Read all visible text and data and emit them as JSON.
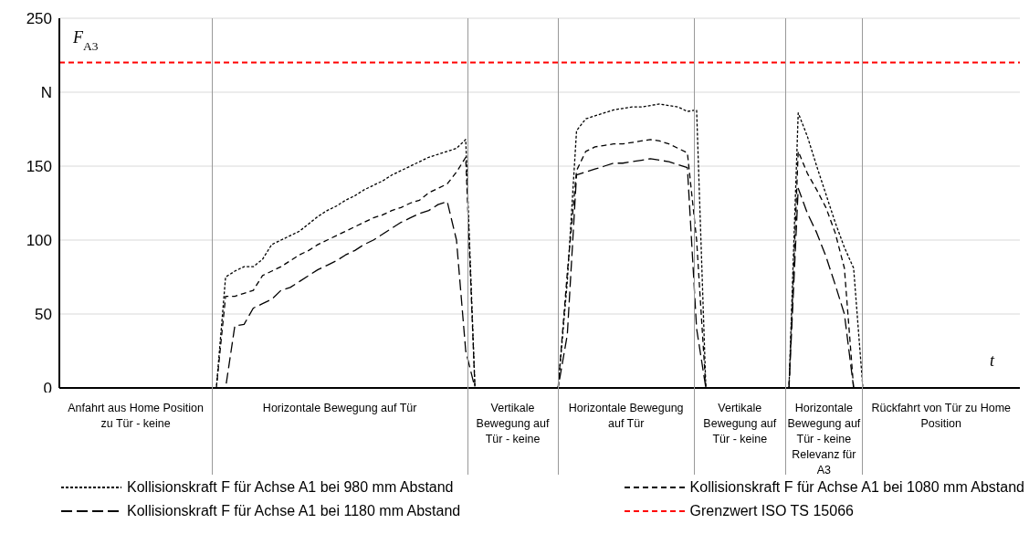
{
  "chart_data": {
    "type": "line",
    "ylabel": "F$_{A3}$",
    "xlabel": "t",
    "categories": [
      null,
      null,
      null,
      null,
      null,
      null,
      null,
      null,
      null,
      null,
      null,
      null,
      null,
      null,
      null,
      null,
      null,
      null,
      null,
      null,
      null,
      null,
      null,
      null,
      null,
      null,
      null,
      null,
      null,
      null,
      null,
      null,
      null,
      null,
      null,
      null,
      null,
      null,
      null,
      null,
      null,
      null,
      null,
      null,
      null,
      null,
      null,
      null,
      null,
      null,
      null,
      null,
      null,
      null,
      null,
      null,
      null,
      null,
      null,
      null,
      null,
      null,
      null,
      null,
      null,
      null,
      null,
      null,
      null,
      null,
      null,
      null,
      null,
      null,
      null,
      null,
      null,
      null,
      null,
      null,
      null,
      null,
      null,
      null,
      null,
      null,
      null,
      null,
      null,
      null,
      null,
      null,
      null,
      null,
      null,
      null,
      null,
      null,
      null,
      null,
      null,
      null,
      null,
      null,
      null
    ],
    "ylim": [
      0,
      250
    ],
    "yticks": [
      0,
      50,
      100,
      150,
      {
        "value": 200,
        "label": "N"
      },
      250
    ],
    "grid": "y",
    "legend": "bottom",
    "marker": "none",
    "series": [
      {
        "name": "Kollisionskraft F für Achse A1 bei 980 mm Abstand",
        "color": "#000000",
        "line_style": "dotted",
        "values": [
          0,
          0,
          0,
          0,
          0,
          0,
          0,
          0,
          0,
          0,
          0,
          0,
          0,
          0,
          0,
          0,
          0,
          0,
          75,
          79,
          82,
          82,
          87,
          97,
          100,
          103,
          106,
          111,
          116,
          120,
          123,
          127,
          130,
          134,
          137,
          140,
          144,
          147,
          150,
          153,
          156,
          158,
          160,
          162,
          168,
          0,
          0,
          0,
          0,
          0,
          0,
          0,
          0,
          0,
          0,
          72,
          174,
          182,
          184,
          186,
          188,
          189,
          190,
          190,
          191,
          192,
          191,
          190,
          187,
          188,
          0,
          0,
          0,
          0,
          0,
          0,
          0,
          0,
          0,
          0,
          186,
          170,
          150,
          131,
          112,
          95,
          81,
          0,
          0,
          0,
          0,
          0,
          0,
          0,
          0,
          0,
          0,
          0,
          0,
          0,
          0,
          0,
          0,
          0,
          0
        ]
      },
      {
        "name": "Kollisionskraft F für Achse A1 bei 1080 mm Abstand",
        "color": "#000000",
        "line_style": "dashed",
        "values": [
          0,
          0,
          0,
          0,
          0,
          0,
          0,
          0,
          0,
          0,
          0,
          0,
          0,
          0,
          0,
          0,
          0,
          0,
          62,
          62,
          64,
          66,
          76,
          79,
          82,
          86,
          90,
          93,
          97,
          100,
          103,
          106,
          109,
          112,
          115,
          117,
          120,
          122,
          125,
          127,
          132,
          135,
          138,
          146,
          156,
          0,
          0,
          0,
          0,
          0,
          0,
          0,
          0,
          0,
          0,
          78,
          147,
          160,
          163,
          164,
          165,
          165,
          166,
          167,
          168,
          167,
          165,
          162,
          159,
          100,
          0,
          0,
          0,
          0,
          0,
          0,
          0,
          0,
          0,
          0,
          160,
          145,
          134,
          122,
          105,
          81,
          0,
          0,
          0,
          0,
          0,
          0,
          0,
          0,
          0,
          0,
          0,
          0,
          0,
          0,
          0,
          0,
          0,
          0,
          0
        ]
      },
      {
        "name": "Kollisionskraft F für Achse A1 bei 1180 mm Abstand",
        "color": "#000000",
        "line_style": "dashed",
        "values": [
          0,
          0,
          0,
          0,
          0,
          0,
          0,
          0,
          0,
          0,
          0,
          0,
          0,
          0,
          0,
          0,
          0,
          0,
          0,
          42,
          43,
          54,
          57,
          60,
          66,
          68,
          72,
          76,
          80,
          83,
          86,
          90,
          93,
          97,
          100,
          104,
          108,
          112,
          115,
          118,
          120,
          124,
          126,
          100,
          25,
          0,
          0,
          0,
          0,
          0,
          0,
          0,
          0,
          0,
          0,
          36,
          144,
          146,
          148,
          150,
          152,
          152,
          153,
          154,
          155,
          154,
          153,
          151,
          149,
          40,
          0,
          0,
          0,
          0,
          0,
          0,
          0,
          0,
          0,
          0,
          135,
          118,
          105,
          89,
          70,
          50,
          0,
          0,
          0,
          0,
          0,
          0,
          0,
          0,
          0,
          0,
          0,
          0,
          0,
          0,
          0,
          0,
          0,
          0,
          0
        ]
      }
    ],
    "ref_lines": [
      {
        "axis": "y",
        "value": 220,
        "label": "Grenzwert ISO TS 15066",
        "color": "#ff0000",
        "line_style": "dashed"
      }
    ],
    "annotations": [
      "Anfahrt aus Home Position zu Tür - keine",
      "Horizontale Bewegung auf Tür",
      "Vertikale Bewegung auf Tür - keine",
      "Horizontale Bewegung auf Tür",
      "Vertikale Bewegung auf Tür - keine",
      "Horizontale Bewegung auf Tür - keine Relevanz für A3",
      "Rückfahrt von Tür zu Home Position"
    ]
  }
}
